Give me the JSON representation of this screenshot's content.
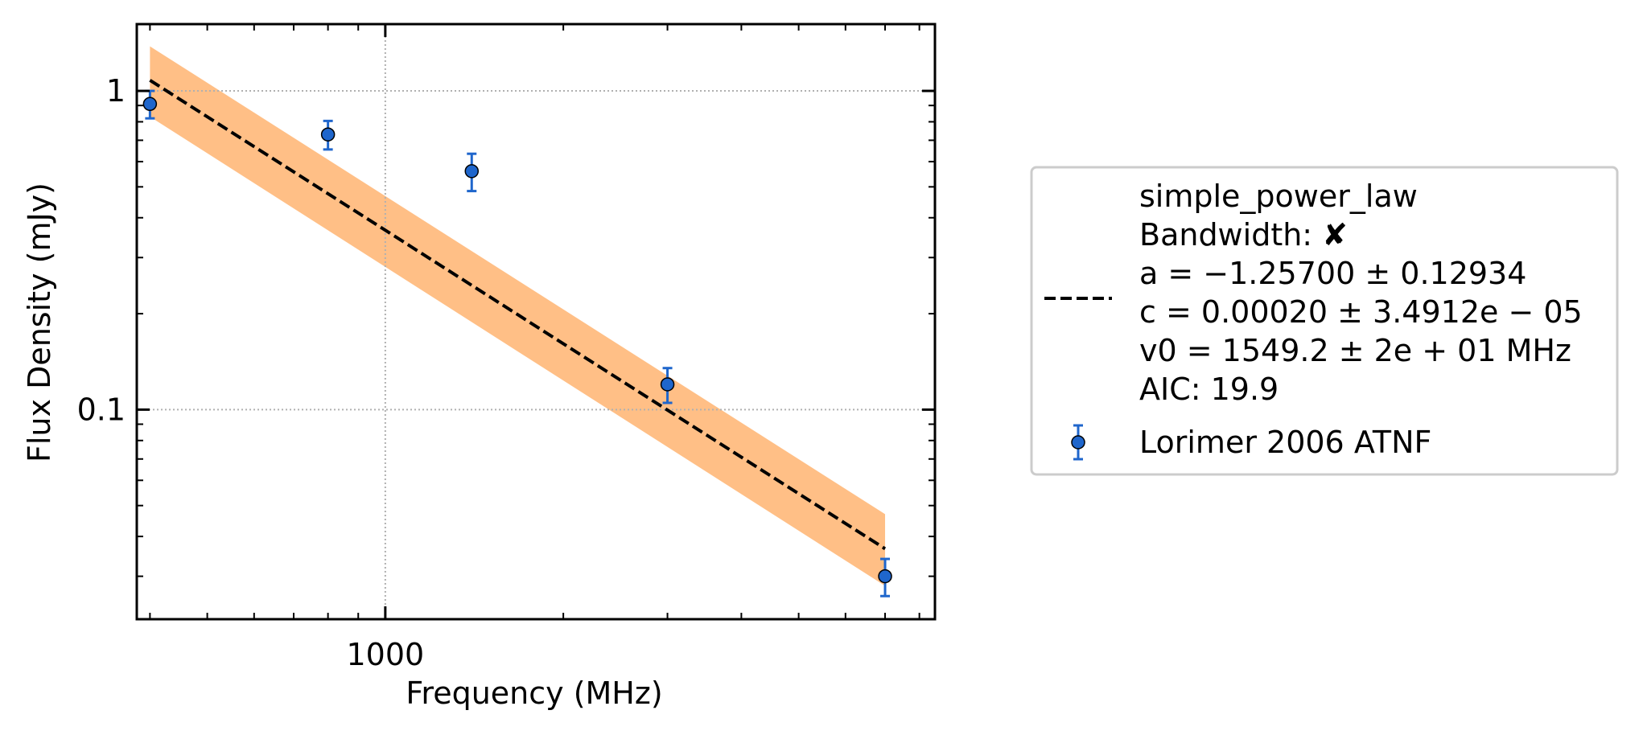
{
  "chart_data": {
    "type": "scatter",
    "title": "",
    "xlabel": "Frequency (MHz)",
    "ylabel": "Flux Density (mJy)",
    "xscale": "log",
    "yscale": "log",
    "xlim": [
      380,
      8500
    ],
    "ylim": [
      0.022,
      1.62
    ],
    "xticks": [
      {
        "value": 1000,
        "label": "1000"
      }
    ],
    "yticks": [
      {
        "value": 0.1,
        "label": "0.1"
      },
      {
        "value": 1,
        "label": "1"
      }
    ],
    "grid": true,
    "legend_position": "outside right",
    "series": [
      {
        "name": "Lorimer 2006 ATNF",
        "kind": "errorbar",
        "color": "#1f66cc",
        "x": [
          400,
          800,
          1400,
          3000,
          7000
        ],
        "y": [
          0.91,
          0.73,
          0.56,
          0.12,
          0.03
        ],
        "yerr": [
          0.09,
          0.075,
          0.075,
          0.015,
          0.004
        ]
      },
      {
        "name": "fit",
        "kind": "line",
        "color": "#000000",
        "linestyle": "dashed",
        "x": [
          400,
          7000
        ],
        "y": [
          1.08,
          0.0366
        ]
      },
      {
        "name": "uncertainty",
        "kind": "band",
        "color": "#ffbf86",
        "x": [
          400,
          7000
        ],
        "y_lower": [
          0.83,
          0.028
        ],
        "y_upper": [
          1.38,
          0.047
        ]
      }
    ],
    "legend": {
      "fit_lines": [
        "simple_power_law",
        "Bandwidth: ✘",
        "a = −1.25700 ± 0.12934",
        "c = 0.00020 ± 3.4912e − 05",
        "v0 = 1549.2 ± 2e + 01 MHz",
        "AIC: 19.9"
      ],
      "data_label": "Lorimer 2006 ATNF"
    }
  }
}
